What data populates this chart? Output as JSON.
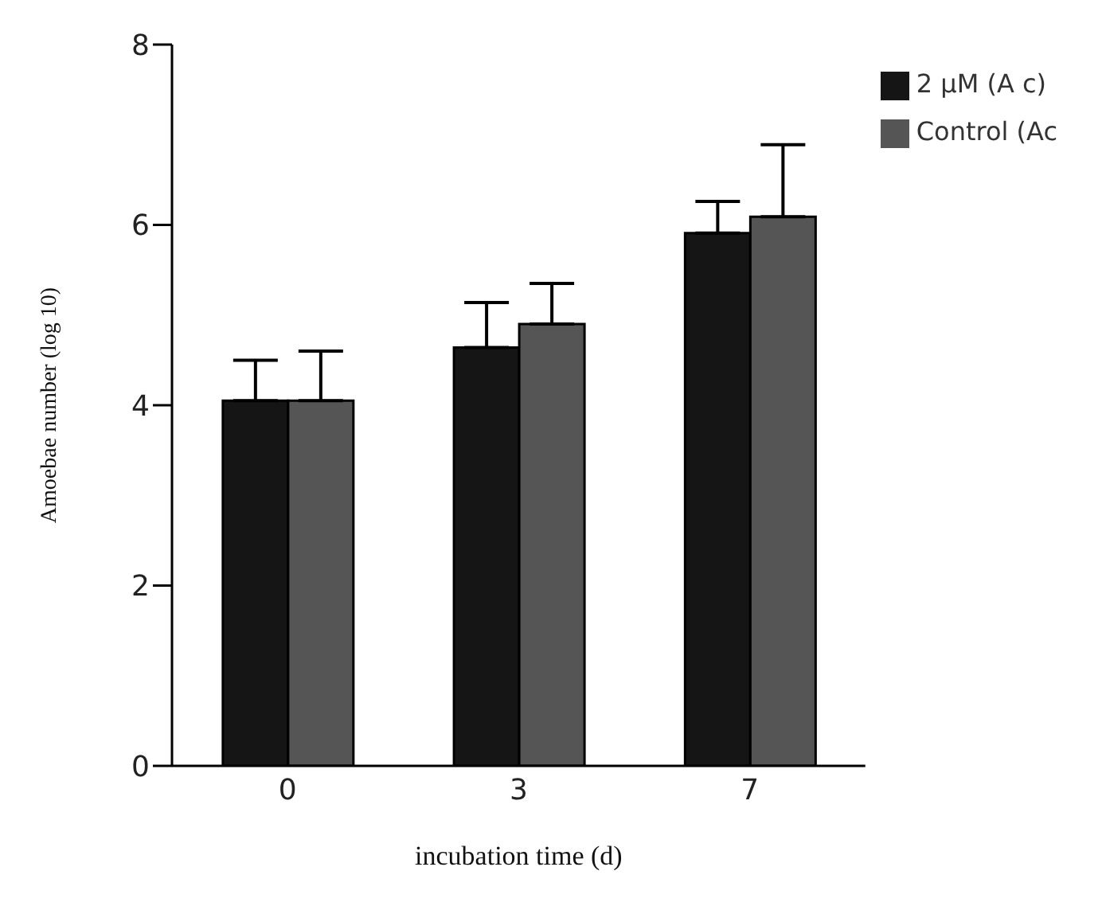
{
  "chart_data": {
    "type": "bar",
    "xlabel": "incubation time (d)",
    "ylabel": "Amoebae number (log 10)",
    "categories": [
      "0",
      "3",
      "7"
    ],
    "series": [
      {
        "name": "2 μM (A c)",
        "color": "#151515",
        "values": [
          4.05,
          4.64,
          5.91
        ],
        "errors": [
          0.45,
          0.5,
          0.35
        ]
      },
      {
        "name": "Control (Ac",
        "color": "#555555",
        "values": [
          4.05,
          4.9,
          6.09
        ],
        "errors": [
          0.55,
          0.45,
          0.8
        ]
      }
    ],
    "ylim": [
      0,
      8
    ],
    "yticks": [
      0,
      2,
      4,
      6,
      8
    ],
    "grid": false,
    "legend": "top right"
  }
}
